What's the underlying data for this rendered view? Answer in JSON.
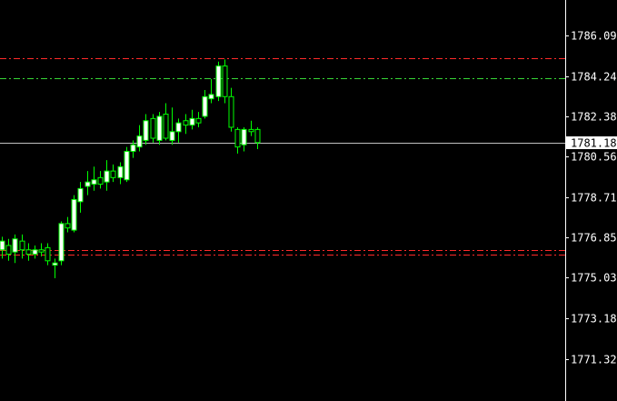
{
  "chart_data": {
    "type": "candlestick",
    "title": "",
    "xlabel": "",
    "ylabel": "",
    "ylim": [
      1771.0,
      1787.3
    ],
    "y_ticks": [
      "1786.095",
      "1784.240",
      "1782.385",
      "1780.565",
      "1778.710",
      "1776.855",
      "1775.035",
      "1773.180",
      "1771.325"
    ],
    "y_tick_values": [
      1786.095,
      1784.24,
      1782.385,
      1780.565,
      1778.71,
      1776.855,
      1775.035,
      1773.18,
      1771.325
    ],
    "current_price": {
      "value": 1781.185,
      "label": "1781.185"
    },
    "grid": false,
    "levels": [
      {
        "kind": "resistance",
        "value": 1785.05,
        "color": "#ff2a2a"
      },
      {
        "kind": "target",
        "value": 1784.15,
        "color": "#36d636"
      },
      {
        "kind": "support",
        "value": 1776.3,
        "color": "#ff2a2a"
      },
      {
        "kind": "support",
        "value": 1776.1,
        "color": "#ff2a2a"
      }
    ],
    "candles": [
      {
        "o": 1776.3,
        "h": 1776.9,
        "l": 1775.9,
        "c": 1776.7
      },
      {
        "o": 1776.5,
        "h": 1776.8,
        "l": 1775.8,
        "c": 1776.1
      },
      {
        "o": 1776.2,
        "h": 1777.0,
        "l": 1775.7,
        "c": 1776.8
      },
      {
        "o": 1776.7,
        "h": 1777.0,
        "l": 1775.9,
        "c": 1776.3
      },
      {
        "o": 1776.3,
        "h": 1776.6,
        "l": 1775.8,
        "c": 1776.1
      },
      {
        "o": 1776.1,
        "h": 1776.5,
        "l": 1775.9,
        "c": 1776.3
      },
      {
        "o": 1776.3,
        "h": 1776.6,
        "l": 1776.0,
        "c": 1776.2
      },
      {
        "o": 1776.4,
        "h": 1776.6,
        "l": 1775.6,
        "c": 1775.8
      },
      {
        "o": 1775.6,
        "h": 1775.9,
        "l": 1775.0,
        "c": 1775.7
      },
      {
        "o": 1775.8,
        "h": 1777.6,
        "l": 1775.6,
        "c": 1777.5
      },
      {
        "o": 1777.5,
        "h": 1777.8,
        "l": 1777.1,
        "c": 1777.3
      },
      {
        "o": 1777.2,
        "h": 1778.8,
        "l": 1777.1,
        "c": 1778.6
      },
      {
        "o": 1778.5,
        "h": 1779.4,
        "l": 1778.0,
        "c": 1779.1
      },
      {
        "o": 1779.2,
        "h": 1779.9,
        "l": 1778.8,
        "c": 1779.4
      },
      {
        "o": 1779.3,
        "h": 1780.1,
        "l": 1779.0,
        "c": 1779.5
      },
      {
        "o": 1779.6,
        "h": 1779.9,
        "l": 1779.1,
        "c": 1779.3
      },
      {
        "o": 1779.4,
        "h": 1780.4,
        "l": 1779.0,
        "c": 1779.9
      },
      {
        "o": 1779.9,
        "h": 1780.2,
        "l": 1779.4,
        "c": 1779.6
      },
      {
        "o": 1779.6,
        "h": 1780.3,
        "l": 1779.3,
        "c": 1780.1
      },
      {
        "o": 1779.5,
        "h": 1781.0,
        "l": 1779.4,
        "c": 1780.8
      },
      {
        "o": 1780.8,
        "h": 1781.3,
        "l": 1780.5,
        "c": 1781.1
      },
      {
        "o": 1781.0,
        "h": 1782.0,
        "l": 1780.8,
        "c": 1781.5
      },
      {
        "o": 1781.3,
        "h": 1782.5,
        "l": 1781.1,
        "c": 1782.2
      },
      {
        "o": 1782.3,
        "h": 1782.5,
        "l": 1781.2,
        "c": 1781.4
      },
      {
        "o": 1781.3,
        "h": 1782.6,
        "l": 1781.1,
        "c": 1782.4
      },
      {
        "o": 1782.5,
        "h": 1783.0,
        "l": 1781.3,
        "c": 1781.4
      },
      {
        "o": 1781.3,
        "h": 1782.8,
        "l": 1781.1,
        "c": 1781.7
      },
      {
        "o": 1781.7,
        "h": 1782.3,
        "l": 1781.2,
        "c": 1782.1
      },
      {
        "o": 1782.2,
        "h": 1782.5,
        "l": 1781.6,
        "c": 1782.0
      },
      {
        "o": 1782.0,
        "h": 1782.7,
        "l": 1781.8,
        "c": 1782.3
      },
      {
        "o": 1782.3,
        "h": 1782.6,
        "l": 1781.9,
        "c": 1782.1
      },
      {
        "o": 1782.4,
        "h": 1783.6,
        "l": 1782.3,
        "c": 1783.3
      },
      {
        "o": 1783.2,
        "h": 1784.1,
        "l": 1783.0,
        "c": 1783.4
      },
      {
        "o": 1783.3,
        "h": 1784.9,
        "l": 1783.1,
        "c": 1784.7
      },
      {
        "o": 1784.7,
        "h": 1785.0,
        "l": 1783.0,
        "c": 1783.3
      },
      {
        "o": 1783.3,
        "h": 1783.7,
        "l": 1781.7,
        "c": 1781.9
      },
      {
        "o": 1781.8,
        "h": 1781.9,
        "l": 1780.7,
        "c": 1781.0
      },
      {
        "o": 1781.1,
        "h": 1781.9,
        "l": 1780.8,
        "c": 1781.8
      },
      {
        "o": 1781.8,
        "h": 1782.2,
        "l": 1781.5,
        "c": 1781.7
      },
      {
        "o": 1781.8,
        "h": 1781.9,
        "l": 1780.9,
        "c": 1781.2
      }
    ]
  },
  "colors": {
    "background": "#000000",
    "axis": "#ffffff",
    "bull_body": "#ffffff",
    "bull_border": "#00ff00",
    "bear_body": "#000000",
    "bear_border": "#00ff00",
    "wick": "#00ff00",
    "current_line": "#c0c0c0"
  }
}
